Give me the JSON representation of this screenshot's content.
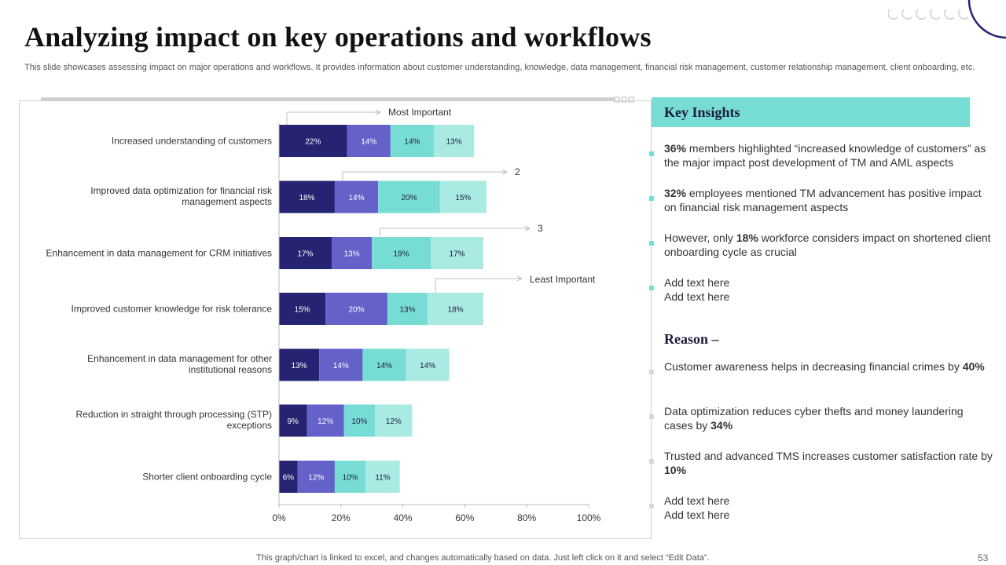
{
  "slide": {
    "title": "Analyzing impact on key operations and workflows",
    "subtitle": "This slide showcases assessing impact on major operations and workflows. It provides information about customer understanding, knowledge, data management, financial risk management, customer relationship management, client onboarding, etc.",
    "footer": "This graph/chart is linked to excel,  and changes automatically based on data. Just left click on it and select “Edit Data”.",
    "page_number": "53"
  },
  "colors": {
    "series": [
      "#262472",
      "#6461c8",
      "#77ddd4",
      "#a9eae2"
    ],
    "accent": "#77ddd4",
    "heading": "#1c1c3c"
  },
  "key_insights": {
    "heading": "Key Insights",
    "items": [
      {
        "bold": "36%",
        "text": " members highlighted “increased knowledge of customers” as the major impact post development of TM and AML aspects"
      },
      {
        "bold": "32%",
        "text": " employees mentioned TM advancement has positive impact on financial risk management aspects"
      },
      {
        "pre": "However, only ",
        "bold": "18%",
        "text": " workforce considers impact on shortened client onboarding cycle as crucial"
      },
      {
        "line1": "Add text here",
        "line2": "Add text here"
      }
    ]
  },
  "reason": {
    "heading": "Reason –",
    "items": [
      {
        "pre": "Customer awareness helps in decreasing financial crimes by ",
        "bold": "40%"
      },
      {
        "pre": "Data optimization reduces cyber thefts and money laundering cases by ",
        "bold": "34%"
      },
      {
        "pre": "Trusted and advanced TMS increases customer satisfaction rate by ",
        "bold": "10%"
      },
      {
        "line1": "Add text here",
        "line2": "Add text here"
      }
    ]
  },
  "chart_data": {
    "type": "bar",
    "orientation": "horizontal",
    "stacked": true,
    "categories": [
      "Increased understanding of customers",
      "Improved data optimization for financial risk management aspects",
      "Enhancement in data management for CRM initiatives",
      "Improved customer knowledge for risk tolerance",
      "Enhancement in data management for other institutional reasons",
      "Reduction in straight through processing (STP) exceptions",
      "Shorter client onboarding cycle"
    ],
    "series": [
      {
        "values": [
          22,
          18,
          17,
          15,
          13,
          9,
          6
        ]
      },
      {
        "values": [
          14,
          14,
          13,
          20,
          14,
          12,
          12
        ]
      },
      {
        "values": [
          14,
          20,
          19,
          13,
          14,
          10,
          10
        ]
      },
      {
        "values": [
          13,
          15,
          17,
          18,
          14,
          12,
          11
        ]
      }
    ],
    "data_labels": [
      [
        "22%",
        "14%",
        "14%",
        "13%"
      ],
      [
        "18%",
        "14%",
        "20%",
        "15%"
      ],
      [
        "17%",
        "13%",
        "19%",
        "17%"
      ],
      [
        "15%",
        "20%",
        "13%",
        "18%"
      ],
      [
        "13%",
        "14%",
        "14%",
        "14%"
      ],
      [
        "9%",
        "12%",
        "10%",
        "12%"
      ],
      [
        "6%",
        "12%",
        "10%",
        "11%"
      ]
    ],
    "xlim": [
      0,
      100
    ],
    "xticks": [
      "0%",
      "20%",
      "40%",
      "60%",
      "80%",
      "100%"
    ],
    "annotations": [
      {
        "label": "Most Important",
        "series_index": 0
      },
      {
        "label": "2",
        "series_index": 1
      },
      {
        "label": "3",
        "series_index": 2
      },
      {
        "label": "Least Important",
        "series_index": 3
      }
    ],
    "legend": "none",
    "grid": false
  }
}
